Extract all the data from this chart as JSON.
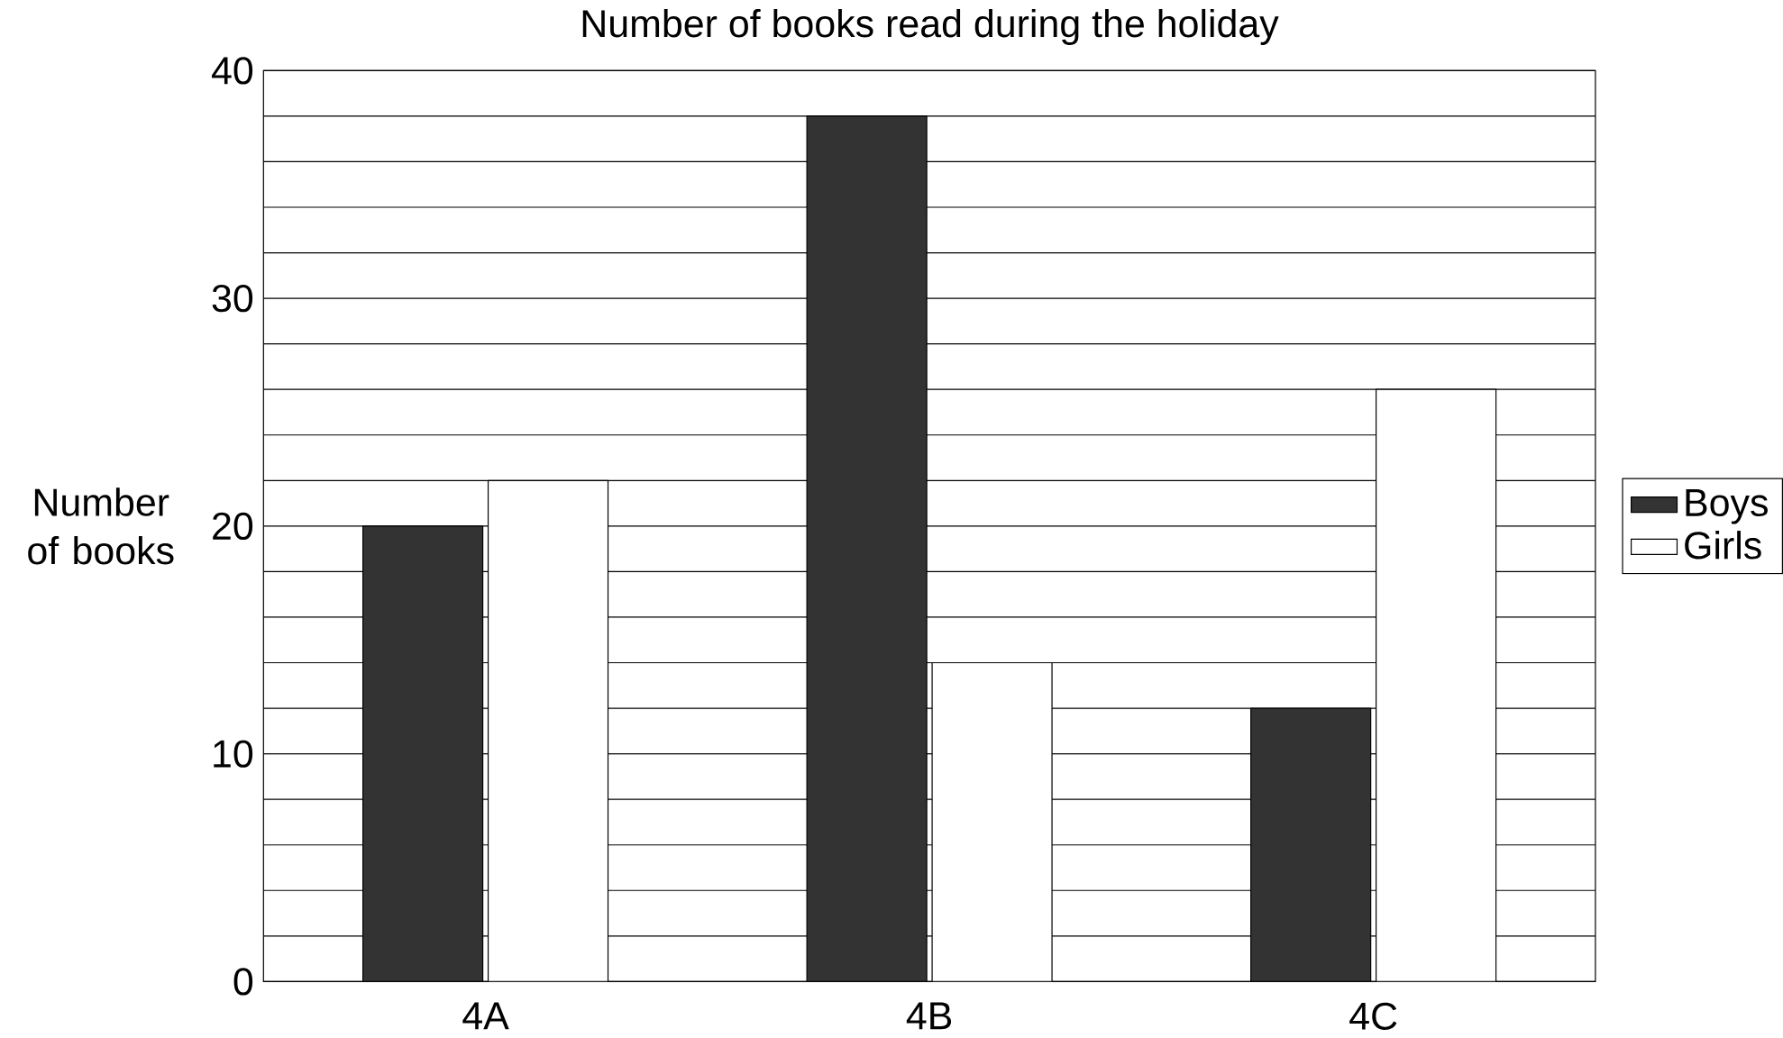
{
  "chart_data": {
    "type": "bar",
    "title": "Number of books read during the holiday",
    "ylabel": "Number of books",
    "categories": [
      "4A",
      "4B",
      "4C"
    ],
    "series": [
      {
        "name": "Boys",
        "color": "#333333",
        "values": [
          20,
          38,
          12
        ]
      },
      {
        "name": "Girls",
        "color": "#ffffff",
        "values": [
          22,
          14,
          26
        ]
      }
    ],
    "ylim": [
      0,
      40
    ],
    "yticks": [
      0,
      10,
      20,
      30,
      40
    ],
    "grid": "y",
    "legend": "right"
  }
}
